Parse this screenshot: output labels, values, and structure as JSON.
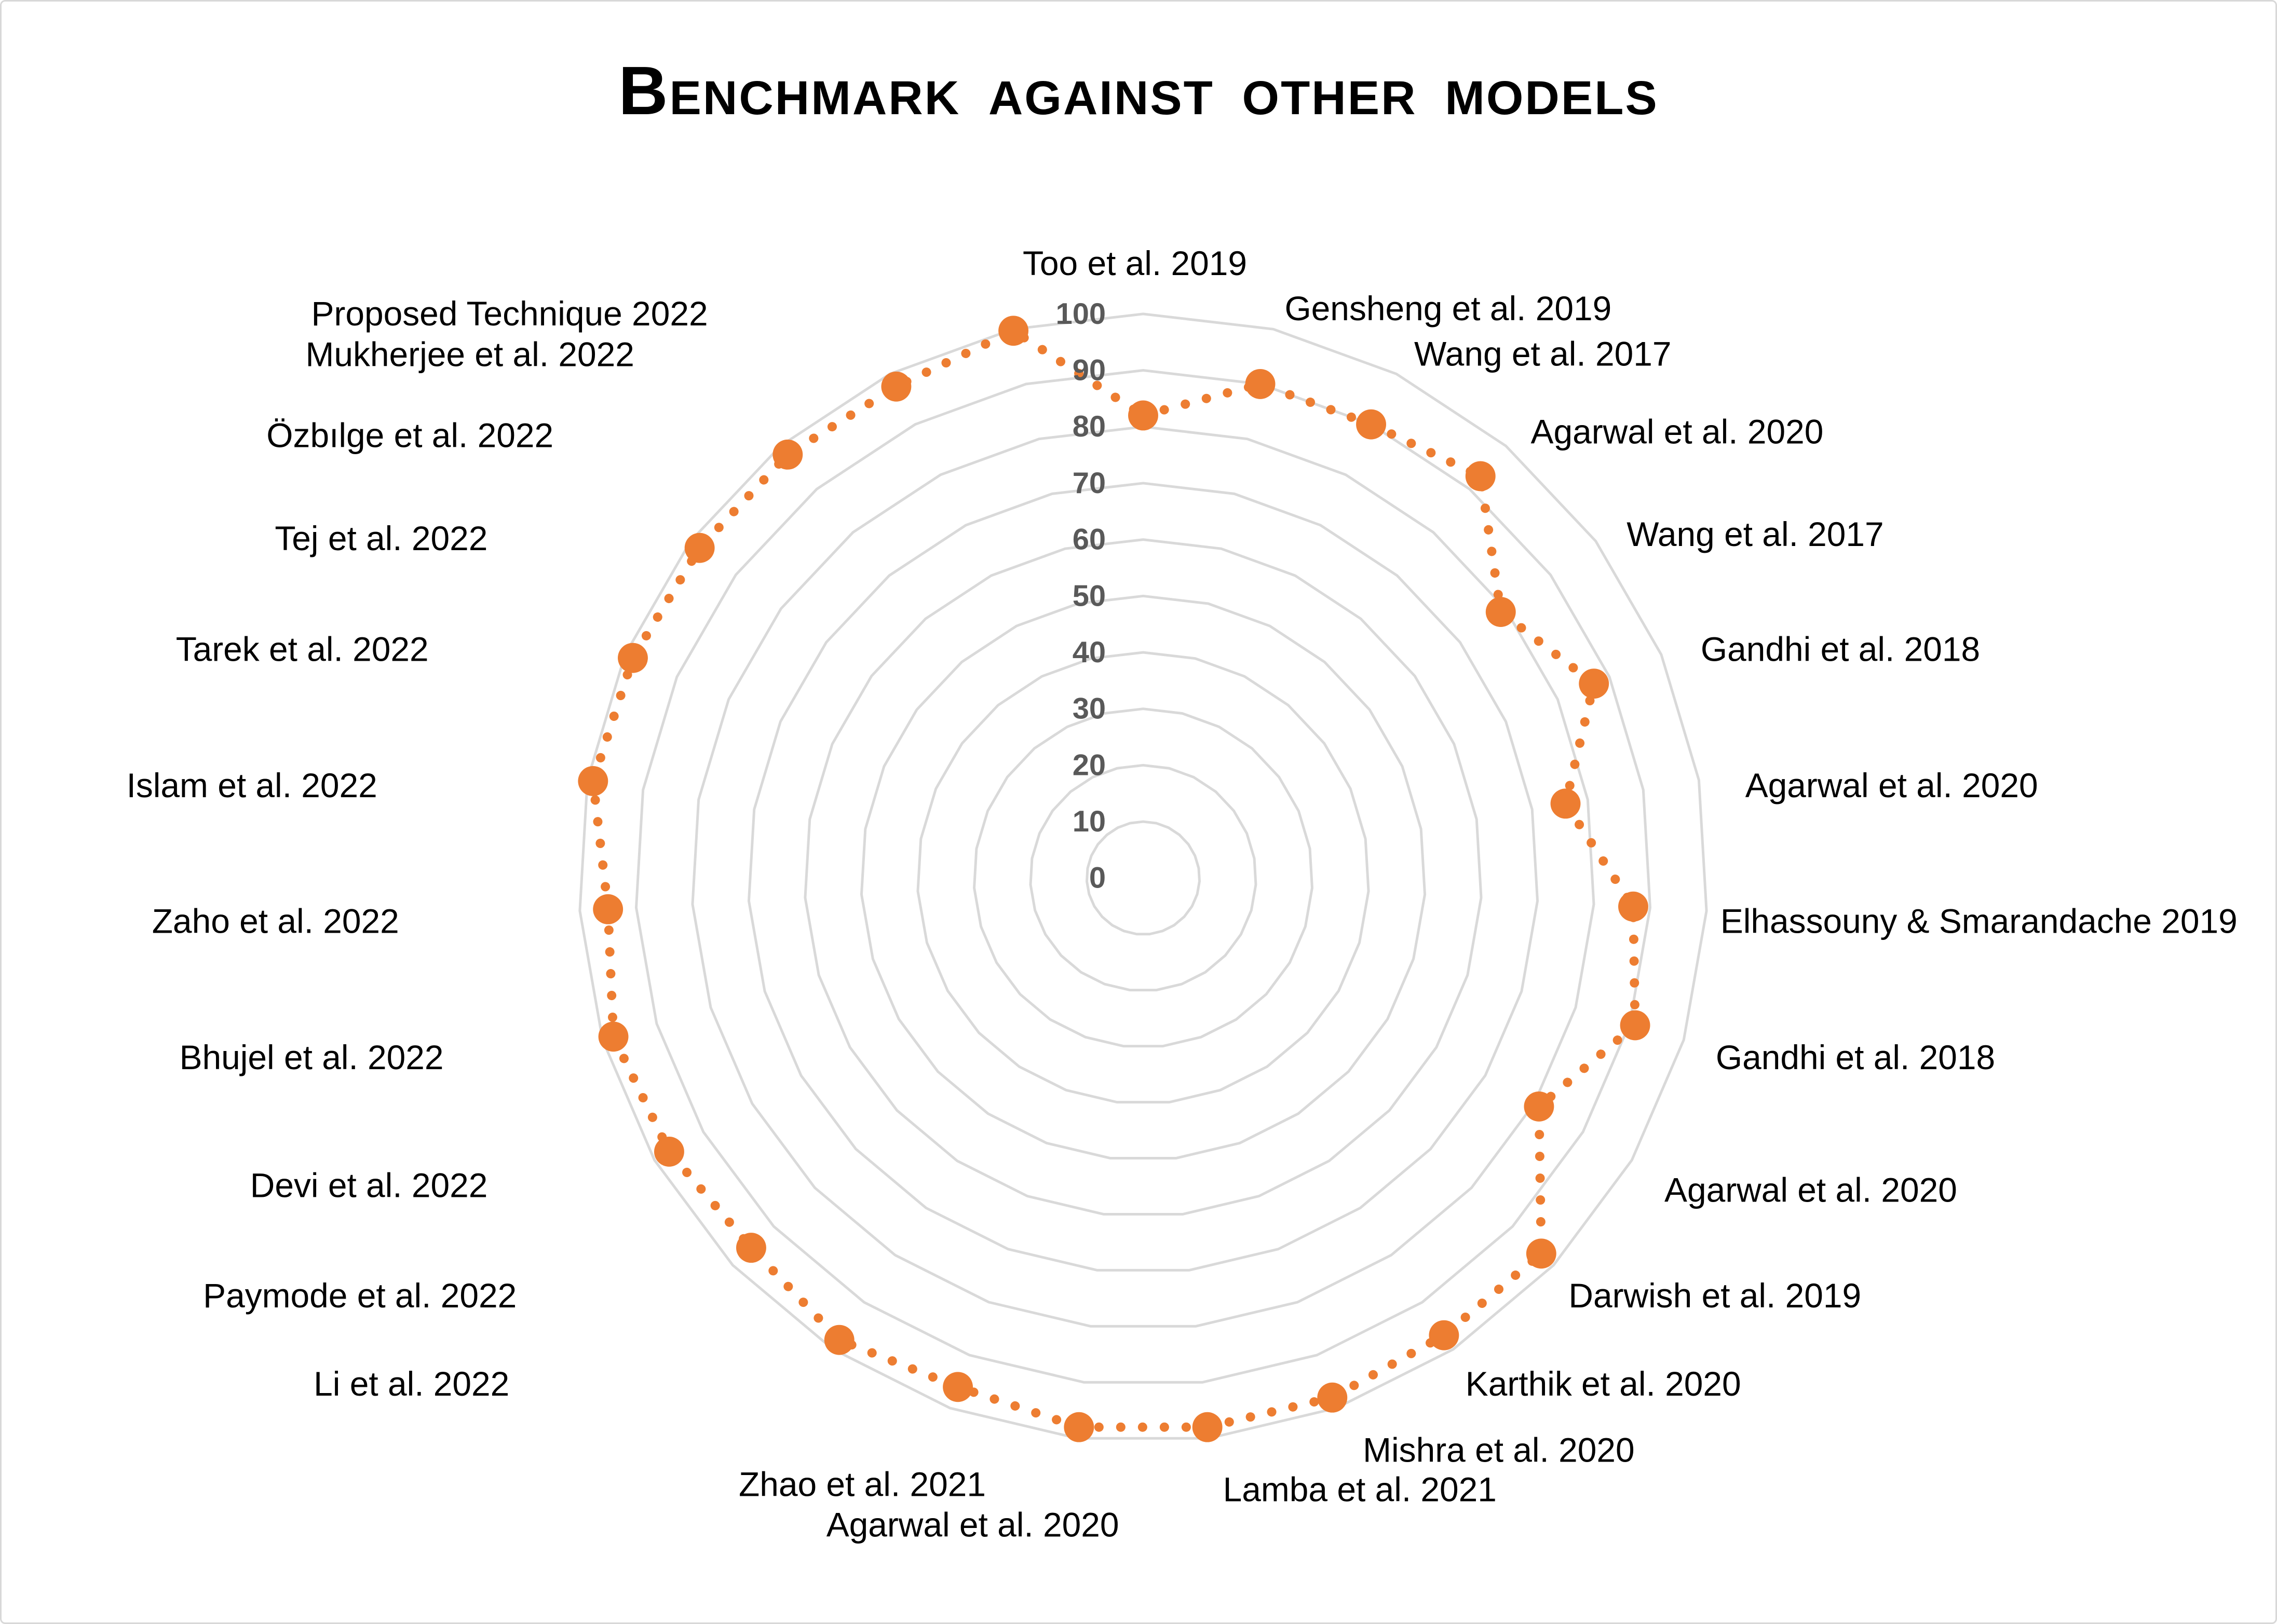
{
  "title": "Benchmark against other models",
  "colors": {
    "series": "#ED7D31",
    "grid": "#D9D9D9",
    "tick_labels": "#595959",
    "category_labels": "#000000",
    "background": "#FFFFFF",
    "figure_border": "#D8D8D8"
  },
  "chart_data": {
    "type": "radar",
    "title": "Benchmark against other models",
    "categories": [
      "Too et al. 2019",
      "Gensheng et al. 2019",
      "Wang et al. 2017",
      "Agarwal et al. 2020",
      "Wang et al. 2017",
      "Gandhi et al. 2018",
      "Agarwal et al. 2020",
      "Elhassouny & Smarandache 2019",
      "Gandhi et al. 2018",
      "Agarwal et al. 2020",
      "Darwish et al. 2019",
      "Karthik et al. 2020",
      "Mishra et al. 2020",
      "Lamba et al. 2021",
      "Agarwal et al. 2020",
      "Zhao et al. 2021",
      "Li et al. 2022",
      "Paymode et al. 2022",
      "Devi et al. 2022",
      "Bhujel et al. 2022",
      "Zaho et al. 2022",
      "Islam et al. 2022",
      "Tarek et al. 2022",
      "Tej et al. 2022",
      "Özbılge et al. 2022",
      "Mukherjee et al. 2022",
      "Proposed Technique 2022"
    ],
    "values": [
      82,
      90,
      90,
      93,
      79,
      87,
      76,
      87,
      91,
      81,
      97,
      97,
      98,
      98,
      98,
      96,
      98,
      95.5,
      97,
      98,
      95,
      99,
      98.5,
      98,
      98,
      97.5,
      99.7
    ],
    "axis": {
      "min": 0,
      "max": 100,
      "step": 10,
      "ticks": [
        0,
        10,
        20,
        30,
        40,
        50,
        60,
        70,
        80,
        90,
        100
      ]
    },
    "grid": true,
    "legend": false,
    "line_style": "dotted",
    "marker": "circle",
    "ylim": [
      0,
      100
    ]
  }
}
